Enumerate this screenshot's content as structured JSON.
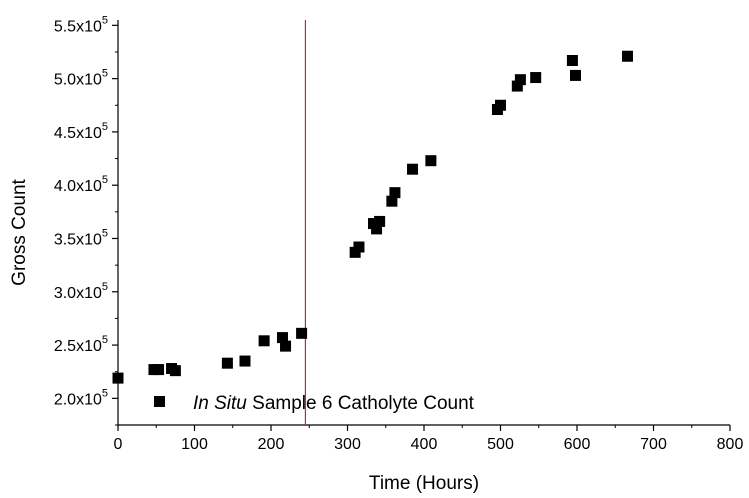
{
  "chart_data": {
    "type": "scatter",
    "xlabel": "Time (Hours)",
    "ylabel": "Gross Count",
    "xlim": [
      0,
      800
    ],
    "ylim": [
      175000,
      555000
    ],
    "x_ticks": [
      0,
      100,
      200,
      300,
      400,
      500,
      600,
      700,
      800
    ],
    "x_tick_labels": [
      "0",
      "100",
      "200",
      "300",
      "400",
      "500",
      "600",
      "700",
      "800"
    ],
    "y_ticks": [
      200000,
      250000,
      300000,
      350000,
      400000,
      450000,
      500000,
      550000
    ],
    "y_tick_labels": [
      {
        "mantissa": "2.0x10",
        "exp": "5"
      },
      {
        "mantissa": "2.5x10",
        "exp": "5"
      },
      {
        "mantissa": "3.0x10",
        "exp": "5"
      },
      {
        "mantissa": "3.5x10",
        "exp": "5"
      },
      {
        "mantissa": "4.0x10",
        "exp": "5"
      },
      {
        "mantissa": "4.5x10",
        "exp": "5"
      },
      {
        "mantissa": "5.0x10",
        "exp": "5"
      },
      {
        "mantissa": "5.5x10",
        "exp": "5"
      }
    ],
    "vertical_line": {
      "x": 245,
      "color": "#b03030"
    },
    "legend": {
      "position": "bottom-left",
      "italic_part": "In Situ",
      "rest": "Sample 6 Catholyte Count"
    },
    "marker_color": "#000000",
    "series": [
      {
        "name": "In Situ Sample 6 Catholyte Count",
        "points": [
          [
            0,
            219000
          ],
          [
            47,
            227000
          ],
          [
            53,
            227000
          ],
          [
            70,
            228000
          ],
          [
            75,
            226000
          ],
          [
            143,
            233000
          ],
          [
            166,
            235000
          ],
          [
            191,
            254000
          ],
          [
            215,
            257000
          ],
          [
            219,
            249000
          ],
          [
            240,
            261000
          ],
          [
            310,
            337000
          ],
          [
            315,
            342000
          ],
          [
            334,
            364000
          ],
          [
            338,
            359000
          ],
          [
            342,
            366000
          ],
          [
            358,
            385000
          ],
          [
            362,
            393000
          ],
          [
            385,
            415000
          ],
          [
            409,
            423000
          ],
          [
            496,
            471000
          ],
          [
            500,
            475000
          ],
          [
            522,
            493000
          ],
          [
            526,
            499000
          ],
          [
            546,
            501000
          ],
          [
            594,
            517000
          ],
          [
            598,
            503000
          ],
          [
            666,
            521000
          ]
        ]
      }
    ]
  }
}
